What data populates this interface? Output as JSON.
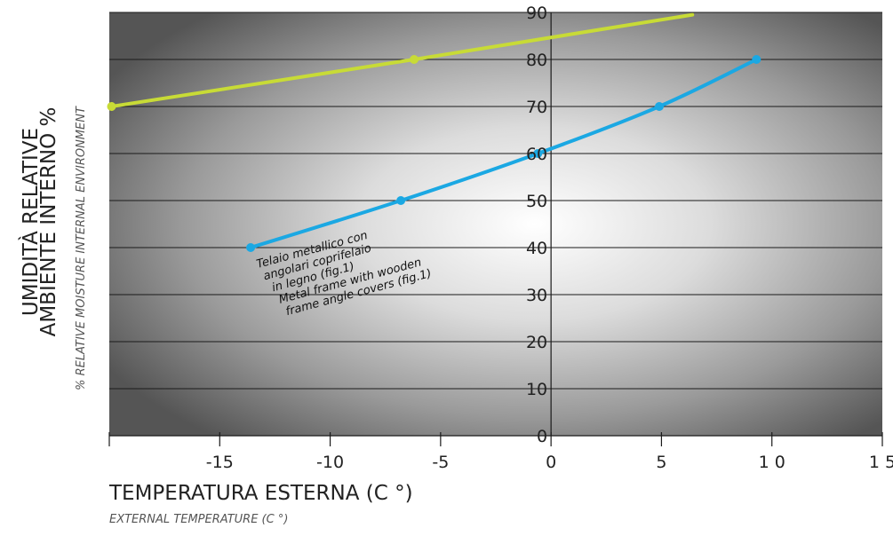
{
  "chart_data": {
    "type": "line",
    "xlabel": "TEMPERATURA ESTERNA (C °)",
    "xlabel_sub": "EXTERNAL TEMPERATURE (C °)",
    "ylabel": [
      "UMIDITÀ RELATIVE",
      "AMBIENTE INTERNO %"
    ],
    "ylabel_sub": "% RELATIVE MOISTURE INTERNAL ENVIRONMENT",
    "xlim": [
      -20,
      15
    ],
    "ylim": [
      0,
      90
    ],
    "xticks": [
      -15,
      -10,
      -5,
      0,
      5,
      10,
      15
    ],
    "xtick_labels": [
      "-15",
      "-10",
      "-5",
      "0",
      "5",
      "1 0",
      "1 5"
    ],
    "yticks": [
      0,
      10,
      20,
      30,
      40,
      50,
      60,
      70,
      80,
      90
    ],
    "ytick_labels": [
      "0",
      "10",
      "20",
      "30",
      "40",
      "50",
      "60",
      "70",
      "80",
      "90"
    ],
    "grid": "horizontal",
    "background": "radial gradient, light center to dark gray edges",
    "series": [
      {
        "color": "#c8db36",
        "points": [
          [
            -19.9,
            70
          ],
          [
            -6.2,
            80
          ]
        ],
        "line_end": [
          6.4,
          89.5
        ]
      },
      {
        "color": "#1ba8e3",
        "points": [
          [
            -13.6,
            40
          ],
          [
            -6.8,
            50
          ],
          [
            -0.6,
            60
          ],
          [
            4.9,
            70
          ],
          [
            9.3,
            80
          ]
        ]
      }
    ],
    "annotation": [
      "Telaio metallico con",
      "angolari coprifelaio",
      "in legno (fig.1)",
      "Metal frame with wooden",
      "frame angle covers (fig.1)"
    ]
  }
}
